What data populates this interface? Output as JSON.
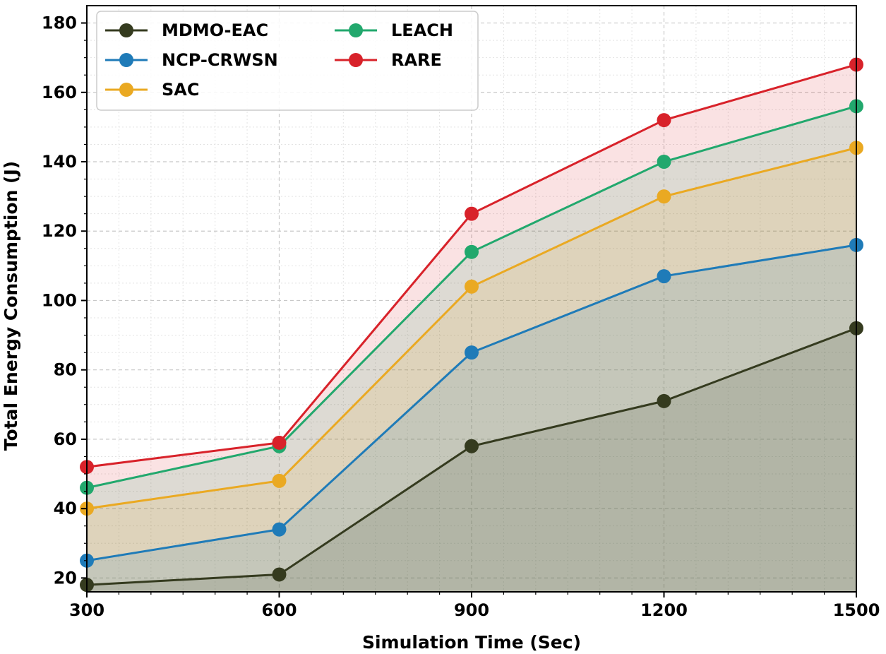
{
  "chart_data": {
    "type": "area",
    "xlabel": "Simulation Time (Sec)",
    "ylabel": "Total Energy Consumption (J)",
    "x": [
      300,
      600,
      900,
      1200,
      1500
    ],
    "xlim": [
      300,
      1500
    ],
    "ylim": [
      16,
      185
    ],
    "xticks": [
      "300",
      "600",
      "900",
      "1200",
      "1500"
    ],
    "yticks": [
      "20",
      "40",
      "60",
      "80",
      "100",
      "120",
      "140",
      "160",
      "180"
    ],
    "grid": true,
    "legend_position": "top-left",
    "series": [
      {
        "name": "MDMO-EAC",
        "color": "#353b1f",
        "values": [
          18,
          21,
          58,
          71,
          92
        ]
      },
      {
        "name": "NCP-CRWSN",
        "color": "#1f7bb8",
        "values": [
          25,
          34,
          85,
          107,
          116
        ]
      },
      {
        "name": "SAC",
        "color": "#eaa922",
        "values": [
          40,
          48,
          104,
          130,
          144
        ]
      },
      {
        "name": "LEACH",
        "color": "#22a86d",
        "values": [
          46,
          58,
          114,
          140,
          156
        ]
      },
      {
        "name": "RARE",
        "color": "#d8222a",
        "values": [
          52,
          59,
          125,
          152,
          168
        ]
      }
    ]
  }
}
